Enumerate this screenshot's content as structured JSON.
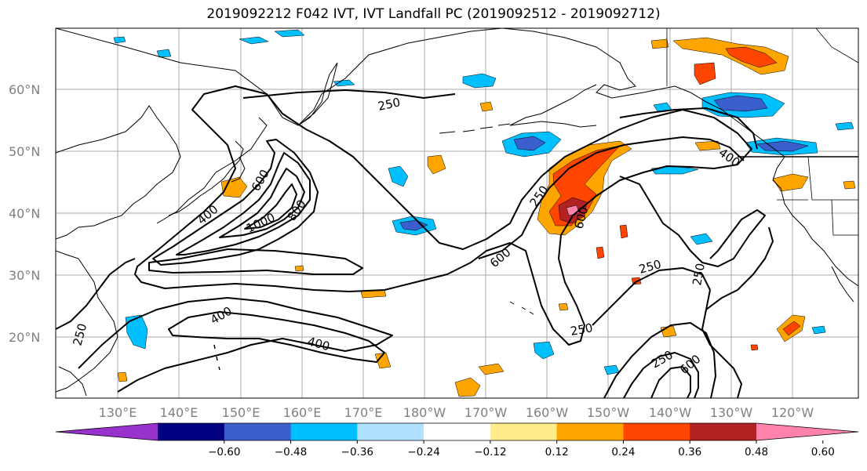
{
  "title": "2019092212 F042 IVT, IVT Landfall PC (2019092512 - 2019092712)",
  "map": {
    "lat_labels": [
      "60°N",
      "50°N",
      "40°N",
      "30°N",
      "20°N"
    ],
    "lon_labels": [
      "130°E",
      "140°E",
      "150°E",
      "160°E",
      "170°E",
      "180°W",
      "170°W",
      "160°W",
      "150°W",
      "140°W",
      "130°W",
      "120°W"
    ],
    "contour_labels": [
      "250",
      "250",
      "250",
      "250",
      "250",
      "250",
      "250",
      "400",
      "400",
      "400",
      "400",
      "600",
      "600",
      "600",
      "600",
      "800",
      "1000"
    ],
    "contour_color": "#000000"
  },
  "colorbar": {
    "colors": [
      "#9932cc",
      "#000080",
      "#3a5fcd",
      "#00bfff",
      "#b0e2ff",
      "#ffffff",
      "#ffec8b",
      "#ffa500",
      "#ff4500",
      "#b22222",
      "#ff82ab"
    ],
    "tick_labels": [
      "−0.60",
      "−0.48",
      "−0.36",
      "−0.24",
      "−0.12",
      "0.12",
      "0.24",
      "0.36",
      "0.48",
      "0.60"
    ]
  }
}
